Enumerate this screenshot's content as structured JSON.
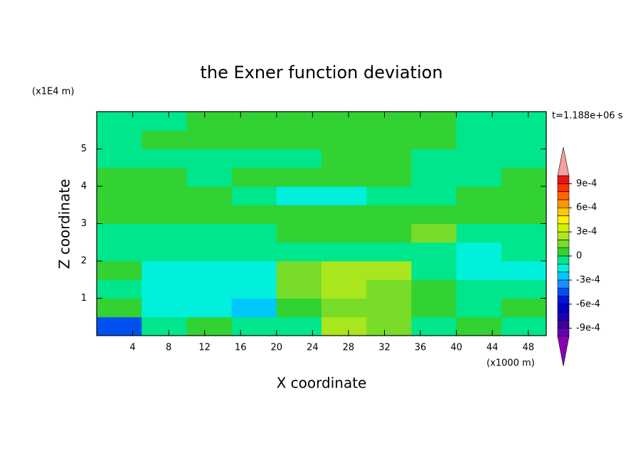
{
  "chart_data": {
    "type": "contour",
    "title": "the Exner function deviation",
    "x_label": "X coordinate",
    "y_label": "Z coordinate",
    "x_unit": "(x1000 m)",
    "y_unit": "(x1E4 m)",
    "annotation": "t=1.188e+06 s",
    "xlim": [
      0,
      50
    ],
    "ylim": [
      0,
      6
    ],
    "xticks": [
      4,
      8,
      12,
      16,
      20,
      24,
      28,
      32,
      36,
      40,
      44,
      48
    ],
    "yticks": [
      1,
      2,
      3,
      4,
      5
    ],
    "x": [
      2.5,
      7.5,
      12.5,
      17.5,
      22.5,
      27.5,
      32.5,
      37.5,
      42.5,
      47.5
    ],
    "y": [
      0.25,
      0.75,
      1.25,
      1.75,
      2.25,
      2.75,
      3.25,
      3.75,
      4.25,
      4.75,
      5.25,
      5.75
    ],
    "z": [
      [
        -0.00045,
        -5e-05,
        5e-05,
        -5e-05,
        -5e-05,
        0.00025,
        0.00015,
        -5e-05,
        5e-05,
        -5e-05
      ],
      [
        5e-05,
        -0.00015,
        -0.00015,
        -0.00025,
        5e-05,
        0.00015,
        0.00015,
        5e-05,
        -5e-05,
        5e-05
      ],
      [
        -5e-05,
        -0.00015,
        -0.00015,
        -0.00015,
        0.00015,
        0.00025,
        0.00015,
        5e-05,
        -5e-05,
        -5e-05
      ],
      [
        5e-05,
        -0.00015,
        -0.00015,
        -0.00015,
        0.00015,
        0.00025,
        0.00025,
        -5e-05,
        -0.00015,
        -0.00015
      ],
      [
        -5e-05,
        -5e-05,
        -5e-05,
        -5e-05,
        -5e-05,
        -5e-05,
        -5e-05,
        -5e-05,
        -0.00015,
        -5e-05
      ],
      [
        -5e-05,
        -5e-05,
        -5e-05,
        -5e-05,
        5e-05,
        5e-05,
        5e-05,
        0.00015,
        -5e-05,
        -5e-05
      ],
      [
        5e-05,
        5e-05,
        5e-05,
        5e-05,
        5e-05,
        5e-05,
        5e-05,
        5e-05,
        5e-05,
        5e-05
      ],
      [
        5e-05,
        5e-05,
        5e-05,
        -5e-05,
        -0.00015,
        -0.00015,
        -5e-05,
        -5e-05,
        5e-05,
        5e-05
      ],
      [
        5e-05,
        5e-05,
        -5e-05,
        5e-05,
        5e-05,
        5e-05,
        5e-05,
        -5e-05,
        -5e-05,
        5e-05
      ],
      [
        -5e-05,
        -5e-05,
        -5e-05,
        -5e-05,
        -5e-05,
        5e-05,
        5e-05,
        -5e-05,
        -5e-05,
        -5e-05
      ],
      [
        -5e-05,
        5e-05,
        5e-05,
        5e-05,
        5e-05,
        5e-05,
        5e-05,
        5e-05,
        -5e-05,
        -5e-05
      ],
      [
        -5e-05,
        -5e-05,
        5e-05,
        5e-05,
        5e-05,
        5e-05,
        5e-05,
        5e-05,
        -5e-05,
        -5e-05
      ]
    ],
    "levels": [
      -0.001,
      -0.0009,
      -0.0008,
      -0.0007,
      -0.0006,
      -0.0005,
      -0.0004,
      -0.0003,
      -0.0002,
      -0.0001,
      0,
      0.0001,
      0.0002,
      0.0003,
      0.0004,
      0.0005,
      0.0006,
      0.0007,
      0.0008,
      0.0009,
      0.001
    ],
    "colors": [
      "#6400b4",
      "#3c00a0",
      "#1e00b4",
      "#0000c8",
      "#0014dc",
      "#0050f0",
      "#1e8cff",
      "#00c8ff",
      "#00f0dc",
      "#00e68c",
      "#32d232",
      "#78dc28",
      "#aae61e",
      "#d2f000",
      "#fff000",
      "#ffc800",
      "#ff9600",
      "#ff6400",
      "#ff3200",
      "#e61414"
    ],
    "extend_colors": [
      "#8c00b4",
      "#f4a0a0"
    ],
    "colorbar_ticks": [
      {
        "value": -0.0009,
        "label": "-9e-4"
      },
      {
        "value": -0.0006,
        "label": "-6e-4"
      },
      {
        "value": -0.0003,
        "label": "-3e-4"
      },
      0,
      {
        "value": 0.0003,
        "label": "3e-4"
      },
      {
        "value": 0.0006,
        "label": "6e-4"
      },
      {
        "value": 0.0009,
        "label": "9e-4"
      }
    ]
  }
}
